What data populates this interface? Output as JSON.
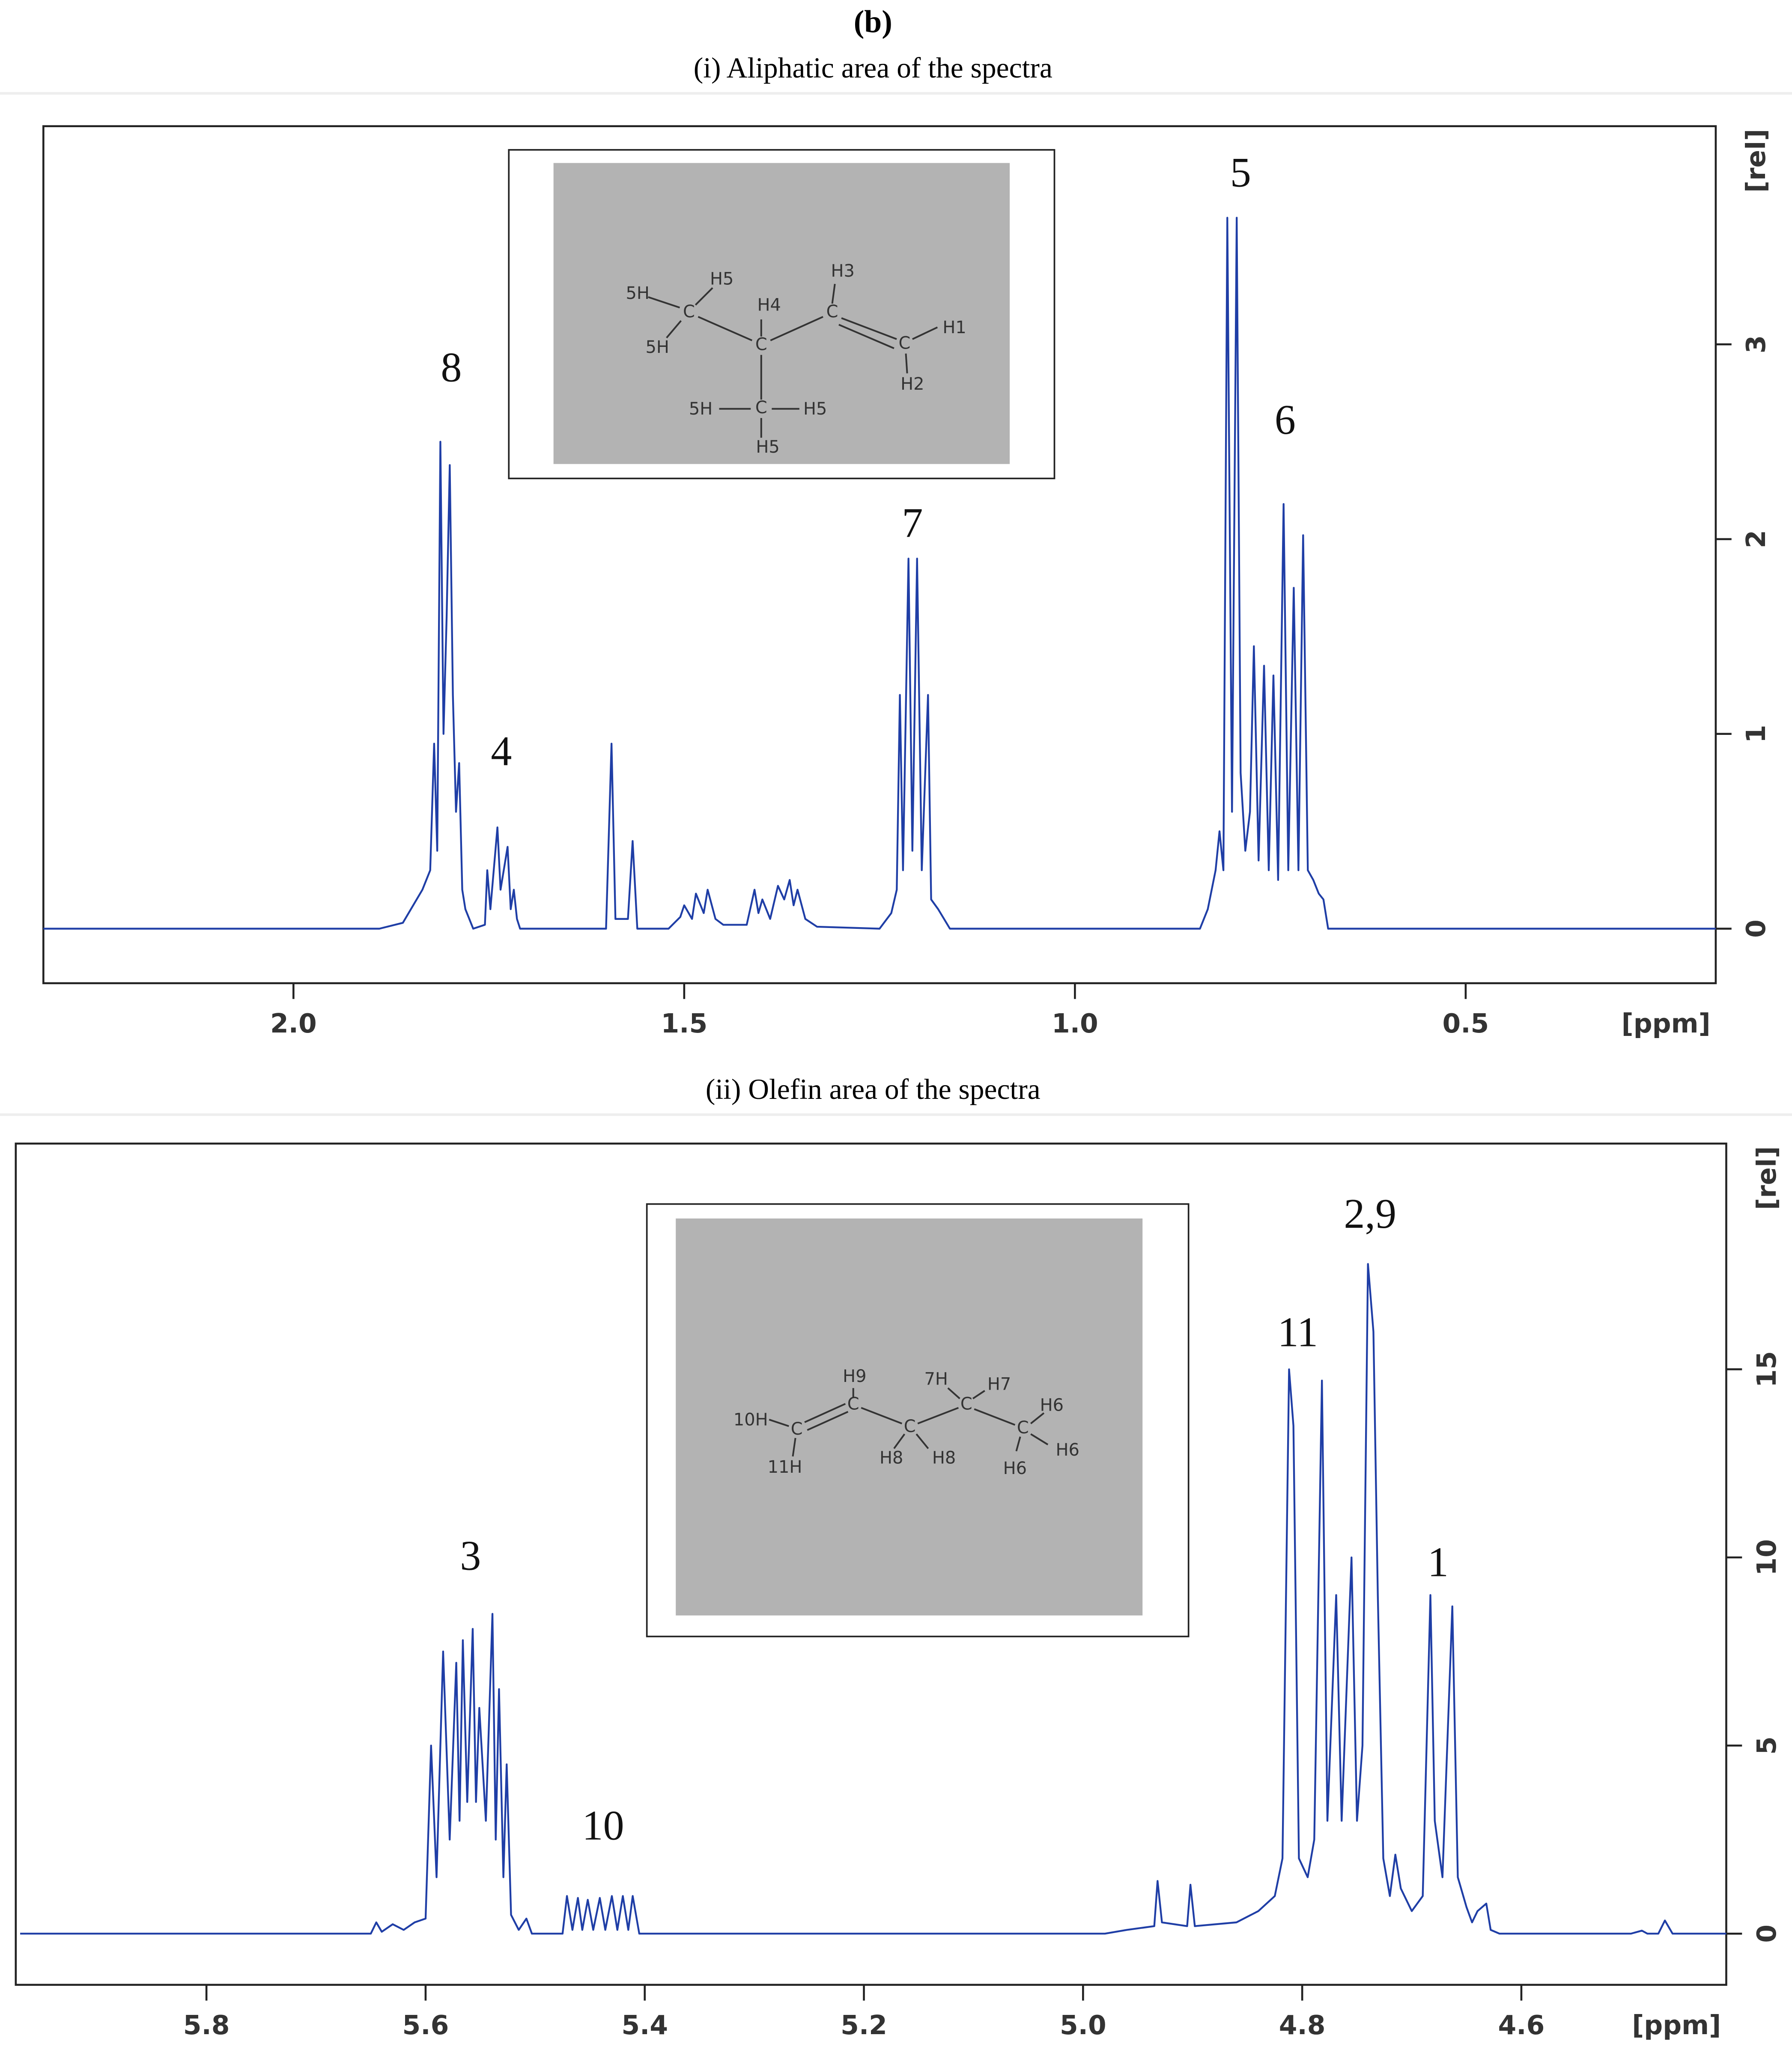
{
  "header": "(b)",
  "chart_data": [
    {
      "type": "line",
      "title": "(i) Aliphatic area of the spectra",
      "x_label": "[ppm]",
      "y_label": "[rel]",
      "color": "#1f3ea6",
      "xlim": [
        2.32,
        0.18
      ],
      "ylim": [
        -0.28,
        4.12
      ],
      "xticks": [
        {
          "value": 2,
          "label": "2.0"
        },
        1.5,
        {
          "value": 1,
          "label": "1.0"
        },
        0.5
      ],
      "yticks": [
        0,
        1,
        2,
        3
      ],
      "x": [
        2.32,
        1.89,
        1.86,
        1.835,
        1.825,
        1.82,
        1.816,
        1.812,
        1.808,
        1.804,
        1.8,
        1.796,
        1.792,
        1.788,
        1.784,
        1.78,
        1.77,
        1.755,
        1.752,
        1.748,
        1.739,
        1.735,
        1.726,
        1.722,
        1.718,
        1.714,
        1.71,
        1.6,
        1.593,
        1.588,
        1.572,
        1.566,
        1.56,
        1.52,
        1.505,
        1.5,
        1.49,
        1.485,
        1.475,
        1.47,
        1.46,
        1.45,
        1.42,
        1.41,
        1.405,
        1.4,
        1.39,
        1.38,
        1.372,
        1.365,
        1.36,
        1.355,
        1.345,
        1.33,
        1.25,
        1.235,
        1.228,
        1.224,
        1.22,
        1.213,
        1.208,
        1.202,
        1.196,
        1.188,
        1.184,
        1.175,
        1.16,
        0.84,
        0.83,
        0.82,
        0.815,
        0.81,
        0.805,
        0.799,
        0.793,
        0.788,
        0.782,
        0.776,
        0.771,
        0.765,
        0.758,
        0.752,
        0.746,
        0.74,
        0.733,
        0.727,
        0.72,
        0.714,
        0.708,
        0.702,
        0.695,
        0.688,
        0.682,
        0.676,
        0.18
      ],
      "values": [
        0,
        0,
        0.03,
        0.2,
        0.3,
        0.95,
        0.4,
        2.5,
        1.0,
        1.6,
        2.38,
        1.2,
        0.6,
        0.85,
        0.2,
        0.1,
        0,
        0.02,
        0.3,
        0.1,
        0.52,
        0.2,
        0.42,
        0.1,
        0.2,
        0.05,
        0,
        0,
        0.95,
        0.05,
        0.05,
        0.45,
        0,
        0,
        0.06,
        0.12,
        0.05,
        0.18,
        0.08,
        0.2,
        0.05,
        0.02,
        0.02,
        0.2,
        0.08,
        0.15,
        0.05,
        0.22,
        0.15,
        0.25,
        0.12,
        0.2,
        0.05,
        0.01,
        0,
        0.08,
        0.2,
        1.2,
        0.3,
        1.9,
        0.4,
        1.9,
        0.3,
        1.2,
        0.15,
        0.1,
        0,
        0,
        0.1,
        0.3,
        0.5,
        0.3,
        3.65,
        0.6,
        3.65,
        0.8,
        0.4,
        0.6,
        1.45,
        0.35,
        1.35,
        0.3,
        1.3,
        0.25,
        2.18,
        0.3,
        1.75,
        0.3,
        2.02,
        0.3,
        0.25,
        0.18,
        0.15,
        0,
        0
      ],
      "annotations": [
        {
          "text": "8",
          "x": 1.798,
          "y": 2.86
        },
        {
          "text": "4",
          "x": 1.734,
          "y": 0.89
        },
        {
          "text": "7",
          "x": 1.208,
          "y": 2.06
        },
        {
          "text": "5",
          "x": 0.788,
          "y": 3.86
        },
        {
          "text": "6",
          "x": 0.731,
          "y": 2.59
        }
      ],
      "inset": [
        "5H",
        "H5",
        "C",
        "5H",
        "H4",
        "C",
        "H3",
        "C",
        "H1",
        "C",
        "H2",
        "5H",
        "C",
        "H5",
        "H5"
      ]
    },
    {
      "type": "line",
      "title": "(ii) Olefin area of the spectra",
      "x_label": "[ppm]",
      "y_label": "[rel]",
      "color": "#1f3ea6",
      "xlim": [
        5.974,
        4.413
      ],
      "ylim": [
        -1.36,
        21.0
      ],
      "xticks": [
        5.8,
        5.6,
        5.4,
        5.2,
        {
          "value": 5,
          "label": "5.0"
        },
        4.8,
        4.6
      ],
      "yticks": [
        0,
        5,
        10,
        15
      ],
      "x": [
        5.97,
        5.65,
        5.645,
        5.64,
        5.63,
        5.62,
        5.61,
        5.6,
        5.595,
        5.59,
        5.584,
        5.578,
        5.572,
        5.569,
        5.566,
        5.562,
        5.557,
        5.554,
        5.551,
        5.545,
        5.539,
        5.536,
        5.533,
        5.529,
        5.526,
        5.522,
        5.515,
        5.508,
        5.503,
        5.475,
        5.471,
        5.466,
        5.461,
        5.457,
        5.452,
        5.447,
        5.441,
        5.436,
        5.43,
        5.425,
        5.42,
        5.415,
        5.411,
        5.405,
        4.98,
        4.96,
        4.935,
        4.932,
        4.928,
        4.905,
        4.902,
        4.898,
        4.86,
        4.84,
        4.825,
        4.818,
        4.812,
        4.808,
        4.803,
        4.795,
        4.789,
        4.782,
        4.777,
        4.769,
        4.764,
        4.755,
        4.75,
        4.745,
        4.74,
        4.735,
        4.731,
        4.726,
        4.72,
        4.715,
        4.71,
        4.7,
        4.69,
        4.683,
        4.679,
        4.672,
        4.663,
        4.658,
        4.65,
        4.645,
        4.64,
        4.632,
        4.628,
        4.62,
        4.5,
        4.49,
        4.485,
        4.475,
        4.469,
        4.462,
        4.413
      ],
      "values": [
        0,
        0,
        0.3,
        0.05,
        0.25,
        0.1,
        0.3,
        0.4,
        5.0,
        1.5,
        7.5,
        2.5,
        7.2,
        3,
        7.8,
        3.5,
        8.1,
        3.5,
        6.0,
        3,
        8.5,
        2.5,
        6.5,
        1.5,
        4.5,
        0.5,
        0.1,
        0.4,
        0,
        0,
        1.0,
        0.1,
        0.95,
        0.1,
        0.9,
        0.1,
        0.95,
        0.1,
        1.0,
        0.1,
        1.0,
        0.1,
        1.0,
        0,
        0,
        0.1,
        0.2,
        1.4,
        0.3,
        0.2,
        1.3,
        0.2,
        0.3,
        0.6,
        1.0,
        2.0,
        15,
        13.5,
        2.0,
        1.5,
        2.5,
        14.7,
        3.0,
        9.0,
        3.0,
        10,
        3,
        5,
        17.8,
        16,
        9,
        2,
        1.0,
        2.1,
        1.2,
        0.6,
        1.0,
        9.0,
        3,
        1.5,
        8.7,
        1.5,
        0.7,
        0.3,
        0.6,
        0.8,
        0.1,
        0,
        0,
        0.08,
        0,
        0,
        0.35,
        0,
        0
      ],
      "annotations": [
        {
          "text": "3",
          "x": 5.559,
          "y": 9.93
        },
        {
          "text": "10",
          "x": 5.438,
          "y": 2.76
        },
        {
          "text": "11",
          "x": 4.804,
          "y": 15.87
        },
        {
          "text": "2,9",
          "x": 4.738,
          "y": 19.02
        },
        {
          "text": "1",
          "x": 4.676,
          "y": 9.76
        }
      ],
      "inset": [
        "10H",
        "C",
        "11H",
        "H9",
        "C",
        "C",
        "H8",
        "H8",
        "7H",
        "C",
        "H7",
        "C",
        "H6",
        "H6",
        "H6"
      ]
    }
  ]
}
